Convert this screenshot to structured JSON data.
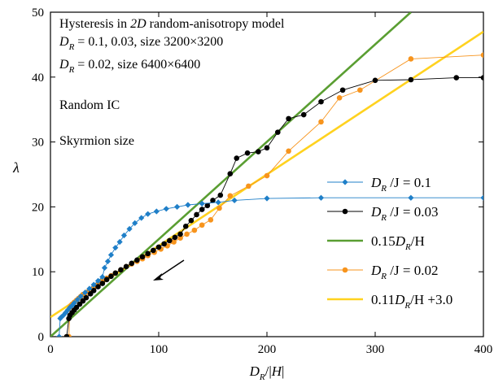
{
  "chart_data": {
    "type": "scatter",
    "xlabel": "D_R/|H|",
    "ylabel": "λ",
    "xlim": [
      0,
      400
    ],
    "ylim": [
      0,
      50
    ],
    "xticks": [
      0,
      100,
      200,
      300,
      400
    ],
    "yticks": [
      0,
      10,
      20,
      30,
      40,
      50
    ],
    "grid": false,
    "legend_position": "lower-right",
    "annotations": {
      "line1": "Hysteresis in 2D random-anisotropy model",
      "line2": "D_R = 0.1, 0.03, size 3200×3200",
      "line3": "D_R = 0.02, size 6400×6400",
      "line4": "Random IC",
      "line5": "Skyrmion size"
    },
    "series": [
      {
        "name": "D_R/J = 0.1",
        "kind": "markers-line",
        "marker": "diamond",
        "color": "#1f7fc8",
        "points": [
          [
            8,
            0
          ],
          [
            9,
            2.8
          ],
          [
            10,
            3.0
          ],
          [
            12,
            3.3
          ],
          [
            14,
            3.7
          ],
          [
            16,
            4.1
          ],
          [
            18,
            4.5
          ],
          [
            20,
            4.8
          ],
          [
            22,
            5.2
          ],
          [
            25,
            5.7
          ],
          [
            28,
            6.2
          ],
          [
            32,
            6.8
          ],
          [
            36,
            7.4
          ],
          [
            40,
            8.0
          ],
          [
            44,
            8.6
          ],
          [
            48,
            9.2
          ],
          [
            50,
            10.6
          ],
          [
            53,
            11.6
          ],
          [
            56,
            12.6
          ],
          [
            60,
            13.7
          ],
          [
            64,
            14.6
          ],
          [
            68,
            15.6
          ],
          [
            73,
            16.6
          ],
          [
            78,
            17.5
          ],
          [
            84,
            18.3
          ],
          [
            90,
            18.9
          ],
          [
            98,
            19.3
          ],
          [
            107,
            19.7
          ],
          [
            117,
            20.0
          ],
          [
            127,
            20.3
          ],
          [
            140,
            20.5
          ],
          [
            155,
            20.7
          ],
          [
            170,
            21.0
          ],
          [
            200,
            21.3
          ],
          [
            250,
            21.4
          ],
          [
            333,
            21.4
          ],
          [
            400,
            21.4
          ]
        ]
      },
      {
        "name": "D_R/J = 0.03",
        "kind": "markers-line",
        "marker": "circle",
        "color": "#000000",
        "points": [
          [
            15,
            0
          ],
          [
            17,
            2.8
          ],
          [
            18,
            3.3
          ],
          [
            20,
            3.7
          ],
          [
            22,
            4.1
          ],
          [
            24,
            4.5
          ],
          [
            27,
            5.0
          ],
          [
            30,
            5.5
          ],
          [
            33,
            6.0
          ],
          [
            37,
            6.6
          ],
          [
            40,
            7.1
          ],
          [
            44,
            7.7
          ],
          [
            48,
            8.2
          ],
          [
            52,
            8.8
          ],
          [
            56,
            9.3
          ],
          [
            60,
            9.8
          ],
          [
            65,
            10.3
          ],
          [
            70,
            10.8
          ],
          [
            75,
            11.3
          ],
          [
            80,
            11.8
          ],
          [
            85,
            12.3
          ],
          [
            90,
            12.8
          ],
          [
            95,
            13.3
          ],
          [
            100,
            13.8
          ],
          [
            105,
            14.3
          ],
          [
            110,
            14.8
          ],
          [
            115,
            15.3
          ],
          [
            120,
            15.8
          ],
          [
            125,
            17.0
          ],
          [
            130,
            17.9
          ],
          [
            135,
            18.8
          ],
          [
            140,
            19.6
          ],
          [
            145,
            20.2
          ],
          [
            150,
            21.0
          ],
          [
            157,
            21.8
          ],
          [
            166,
            25.1
          ],
          [
            172,
            27.5
          ],
          [
            182,
            28.3
          ],
          [
            192,
            28.5
          ],
          [
            200,
            29.1
          ],
          [
            210,
            31.5
          ],
          [
            220,
            33.6
          ],
          [
            234,
            34.2
          ],
          [
            250,
            36.2
          ],
          [
            270,
            38.0
          ],
          [
            300,
            39.5
          ],
          [
            333,
            39.6
          ],
          [
            375,
            39.9
          ],
          [
            400,
            39.9
          ]
        ]
      },
      {
        "name": "0.15 D_R/H",
        "kind": "line",
        "color": "#5a9e32",
        "points": [
          [
            0,
            0
          ],
          [
            333,
            50
          ]
        ]
      },
      {
        "name": "D_R/J = 0.02",
        "kind": "markers-line",
        "marker": "circle",
        "color": "#f7941d",
        "points": [
          [
            15,
            0
          ],
          [
            17,
            0
          ],
          [
            18,
            4.5
          ],
          [
            19,
            4.8
          ],
          [
            20,
            5.0
          ],
          [
            22,
            5.3
          ],
          [
            24,
            5.6
          ],
          [
            26,
            5.9
          ],
          [
            28,
            6.2
          ],
          [
            30,
            6.5
          ],
          [
            33,
            6.8
          ],
          [
            36,
            7.2
          ],
          [
            40,
            7.6
          ],
          [
            44,
            8.1
          ],
          [
            48,
            8.6
          ],
          [
            52,
            9.0
          ],
          [
            56,
            9.4
          ],
          [
            60,
            9.8
          ],
          [
            65,
            10.3
          ],
          [
            70,
            10.8
          ],
          [
            75,
            11.2
          ],
          [
            80,
            11.6
          ],
          [
            85,
            12.0
          ],
          [
            90,
            12.5
          ],
          [
            96,
            13.0
          ],
          [
            102,
            13.5
          ],
          [
            108,
            14.0
          ],
          [
            114,
            14.6
          ],
          [
            120,
            15.2
          ],
          [
            126,
            15.8
          ],
          [
            133,
            16.4
          ],
          [
            140,
            17.2
          ],
          [
            148,
            18.0
          ],
          [
            156,
            19.8
          ],
          [
            166,
            21.7
          ],
          [
            183,
            23.2
          ],
          [
            200,
            24.8
          ],
          [
            220,
            28.6
          ],
          [
            250,
            33.1
          ],
          [
            267,
            36.8
          ],
          [
            286,
            38.0
          ],
          [
            333,
            42.8
          ],
          [
            400,
            43.4
          ]
        ]
      },
      {
        "name": "0.11 D_R/H +3.0",
        "kind": "line",
        "color": "#ffd21f",
        "points": [
          [
            0,
            3.0
          ],
          [
            400,
            47.0
          ]
        ]
      }
    ]
  },
  "legend": [
    {
      "main": "D",
      "sub": "R",
      "rest": " /J = 0.1",
      "color": "#1f7fc8",
      "marker": "diamond"
    },
    {
      "main": "D",
      "sub": "R",
      "rest": " /J = 0.03",
      "color": "#000000",
      "marker": "circle"
    },
    {
      "main": "0.15D",
      "sub": "R",
      "rest": "/H",
      "color": "#5a9e32",
      "marker": "none"
    },
    {
      "main": "D",
      "sub": "R",
      "rest": " /J = 0.02",
      "color": "#f7941d",
      "marker": "circle"
    },
    {
      "main": "0.11D",
      "sub": "R",
      "rest": "/H +3.0",
      "color": "#ffd21f",
      "marker": "none"
    }
  ]
}
